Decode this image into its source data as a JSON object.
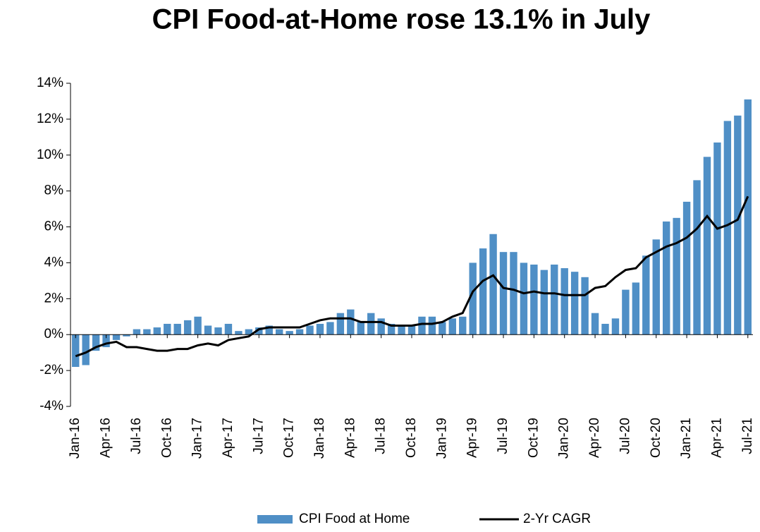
{
  "chart_data": {
    "type": "bar-line",
    "title": "CPI Food-at-Home rose 13.1% in July",
    "categories": [
      "Jan-16",
      null,
      null,
      "Apr-16",
      null,
      null,
      "Jul-16",
      null,
      null,
      "Oct-16",
      null,
      null,
      "Jan-17",
      null,
      null,
      "Apr-17",
      null,
      null,
      "Jul-17",
      null,
      null,
      "Oct-17",
      null,
      null,
      "Jan-18",
      null,
      null,
      "Apr-18",
      null,
      null,
      "Jul-18",
      null,
      null,
      "Oct-18",
      null,
      null,
      "Jan-19",
      null,
      null,
      "Apr-19",
      null,
      null,
      "Jul-19",
      null,
      null,
      "Oct-19",
      null,
      null,
      "Jan-20",
      null,
      null,
      "Apr-20",
      null,
      null,
      "Jul-20",
      null,
      null,
      "Oct-20",
      null,
      null,
      "Jan-21",
      null,
      null,
      "Apr-21",
      null,
      null,
      "Jul-21"
    ],
    "series": [
      {
        "name": "CPI Food at Home",
        "type": "bar",
        "color": "#4f8fc6",
        "values": [
          -1.8,
          -1.7,
          -0.9,
          -0.7,
          -0.3,
          -0.1,
          0.3,
          0.3,
          0.4,
          0.6,
          0.6,
          0.8,
          1.0,
          0.5,
          0.4,
          0.6,
          0.2,
          0.3,
          0.4,
          0.5,
          0.3,
          0.2,
          0.3,
          0.5,
          0.6,
          0.7,
          1.2,
          1.4,
          0.7,
          1.2,
          0.9,
          0.6,
          0.5,
          0.5,
          1.0,
          1.0,
          0.7,
          0.9,
          1.0,
          4.0,
          4.8,
          5.6,
          4.6,
          4.6,
          4.0,
          3.9,
          3.6,
          3.9,
          3.7,
          3.5,
          3.2,
          1.2,
          0.6,
          0.9,
          2.5,
          2.9,
          4.4,
          5.3,
          6.3,
          6.5,
          7.4,
          8.6,
          9.9,
          10.7,
          11.9,
          12.2,
          13.1
        ]
      },
      {
        "name": "2-Yr CAGR",
        "type": "line",
        "color": "#000000",
        "values": [
          -1.2,
          -1.0,
          -0.7,
          -0.5,
          -0.4,
          -0.7,
          -0.7,
          -0.8,
          -0.9,
          -0.9,
          -0.8,
          -0.8,
          -0.6,
          -0.5,
          -0.6,
          -0.3,
          -0.2,
          -0.1,
          0.3,
          0.4,
          0.4,
          0.4,
          0.4,
          0.6,
          0.8,
          0.9,
          0.9,
          0.9,
          0.7,
          0.7,
          0.7,
          0.5,
          0.5,
          0.5,
          0.6,
          0.6,
          0.7,
          1.0,
          1.2,
          2.4,
          3.0,
          3.3,
          2.6,
          2.5,
          2.3,
          2.4,
          2.3,
          2.3,
          2.2,
          2.2,
          2.2,
          2.6,
          2.7,
          3.2,
          3.6,
          3.7,
          4.3,
          4.6,
          4.9,
          5.1,
          5.4,
          5.9,
          6.6,
          5.9,
          6.1,
          6.4,
          7.7
        ]
      }
    ],
    "ylim": [
      -4,
      14
    ],
    "yticks": [
      {
        "value": -4,
        "label": "-4%"
      },
      {
        "value": -2,
        "label": "-2%"
      },
      {
        "value": 0,
        "label": "0%"
      },
      {
        "value": 2,
        "label": "2%"
      },
      {
        "value": 4,
        "label": "4%"
      },
      {
        "value": 6,
        "label": "6%"
      },
      {
        "value": 8,
        "label": "8%"
      },
      {
        "value": 10,
        "label": "10%"
      },
      {
        "value": 12,
        "label": "12%"
      },
      {
        "value": 14,
        "label": "14%"
      }
    ],
    "grid": false,
    "legend": "bottom"
  }
}
